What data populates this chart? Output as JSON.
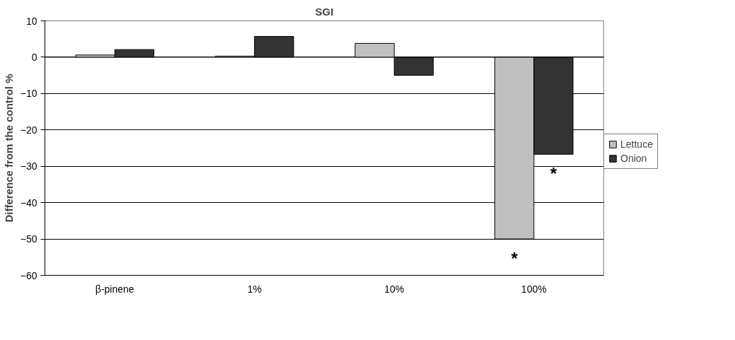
{
  "chart_data": {
    "type": "bar",
    "title": "SGI",
    "ylabel": "Difference from the control %",
    "categories": [
      "β-pinene",
      "1%",
      "10%",
      "100%"
    ],
    "series": [
      {
        "name": "Lettuce",
        "color": "#c0c0c0",
        "values": [
          0.6,
          0.3,
          3.8,
          -50
        ]
      },
      {
        "name": "Onion",
        "color": "#333333",
        "values": [
          2.1,
          5.7,
          -5.0,
          -26.7
        ]
      }
    ],
    "ylim": [
      -60,
      10
    ],
    "yticks": [
      -60,
      -50,
      -40,
      -30,
      -20,
      -10,
      0,
      10
    ],
    "grid": "y",
    "legend": "right",
    "annotations": [
      {
        "text": "*",
        "x": "100%",
        "y": -50
      },
      {
        "text": "*",
        "x": "100%",
        "y": -26.7
      }
    ]
  }
}
